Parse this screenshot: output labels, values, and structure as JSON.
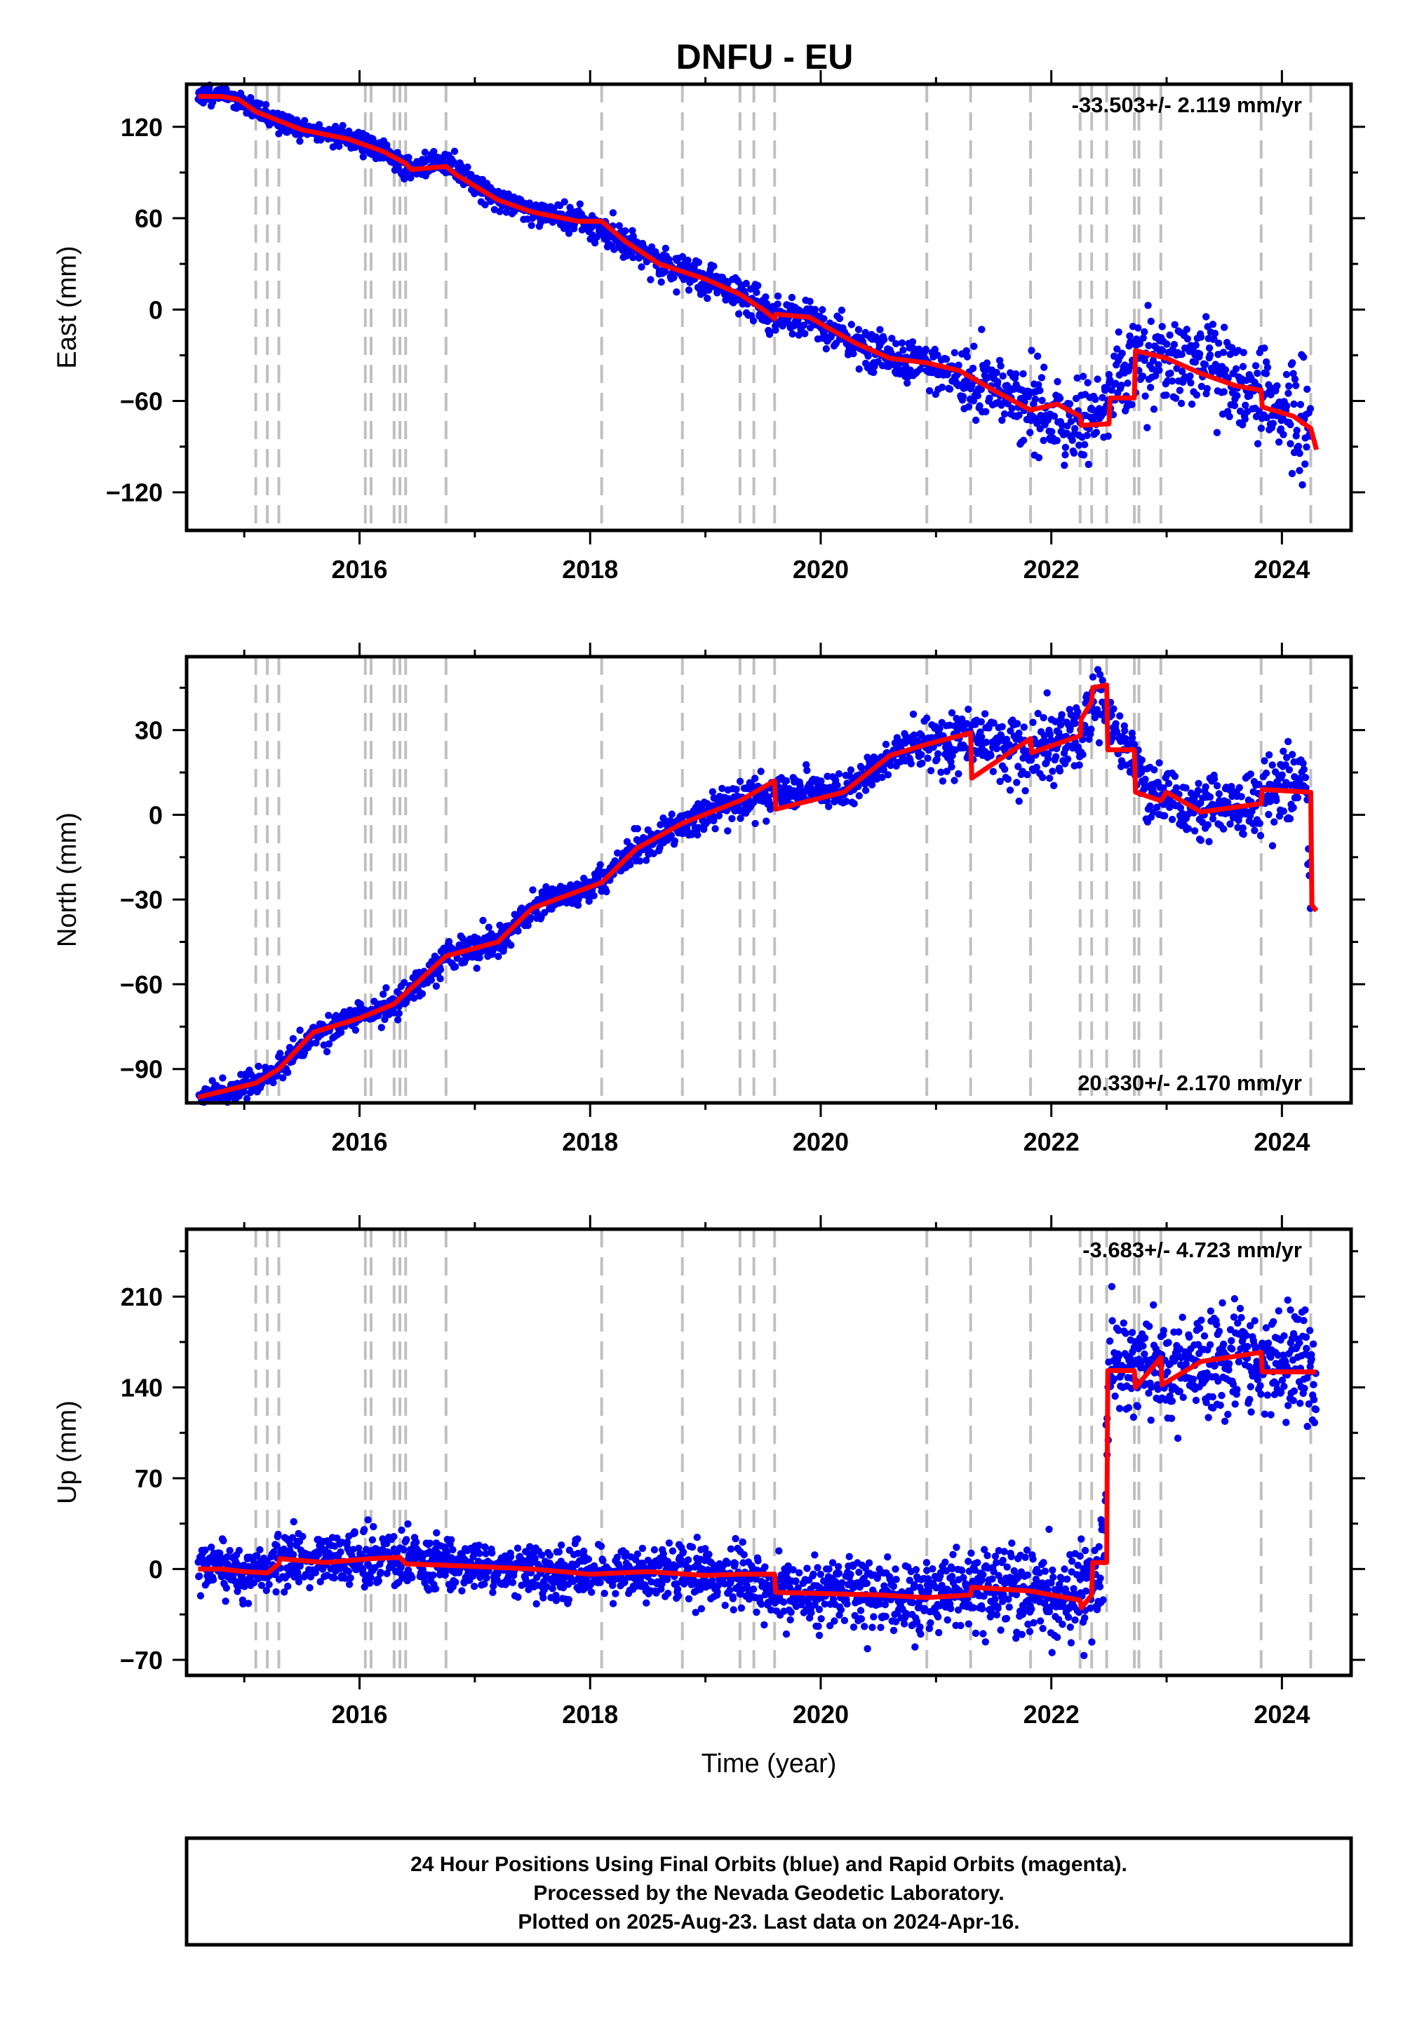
{
  "title": "DNFU - EU",
  "colors": {
    "points": "#0000ee",
    "model": "#ff0000",
    "events": "#c0c0c0",
    "frame": "#000000"
  },
  "footer": {
    "lines": [
      "24 Hour Positions Using Final Orbits (blue) and Rapid Orbits (magenta).",
      "Processed by the Nevada Geodetic Laboratory.",
      "Plotted on 2025-Aug-23. Last data on 2024-Apr-16."
    ]
  },
  "chart_data": [
    {
      "type": "scatter",
      "component": "east",
      "ylabel": "East (mm)",
      "xlabel": "",
      "rate_text": "-33.503+/- 2.119 mm/yr",
      "rate_position": "top-right",
      "xlim": [
        2014.5,
        2024.6
      ],
      "ylim": [
        -145,
        148
      ],
      "xticks": [
        2016,
        2018,
        2020,
        2022,
        2024
      ],
      "yticks": [
        120,
        60,
        0,
        -60,
        -120
      ],
      "ytick_labels": [
        "120",
        "60",
        "0",
        "−60",
        "−120"
      ],
      "event_lines": [
        2015.1,
        2015.2,
        2015.3,
        2016.05,
        2016.1,
        2016.3,
        2016.35,
        2016.4,
        2016.75,
        2018.1,
        2018.8,
        2019.3,
        2019.42,
        2019.6,
        2020.92,
        2021.3,
        2021.82,
        2022.25,
        2022.35,
        2022.48,
        2022.72,
        2022.76,
        2022.95,
        2023.82,
        2024.25
      ],
      "model": {
        "x": [
          2014.6,
          2014.8,
          2014.95,
          2015.1,
          2015.5,
          2015.9,
          2016.2,
          2016.4,
          2016.45,
          2016.75,
          2016.85,
          2017.2,
          2017.5,
          2017.9,
          2018.1,
          2018.3,
          2018.6,
          2018.8,
          2019.0,
          2019.3,
          2019.5,
          2019.6,
          2019.61,
          2019.9,
          2020.3,
          2020.6,
          2020.92,
          2021.2,
          2021.5,
          2021.82,
          2022.05,
          2022.25,
          2022.26,
          2022.5,
          2022.51,
          2022.72,
          2022.73,
          2023.0,
          2023.3,
          2023.6,
          2023.82,
          2023.83,
          2024.1,
          2024.25,
          2024.3
        ],
        "y": [
          140,
          140,
          138,
          130,
          118,
          112,
          104,
          96,
          92,
          94,
          88,
          72,
          64,
          58,
          58,
          45,
          30,
          25,
          20,
          10,
          0,
          -6,
          -3,
          -5,
          -22,
          -32,
          -35,
          -40,
          -53,
          -66,
          -62,
          -70,
          -76,
          -75,
          -58,
          -58,
          -27,
          -32,
          -42,
          -50,
          -53,
          -64,
          -70,
          -78,
          -92
        ]
      },
      "scatter": {
        "trend": [
          [
            2014.6,
            141
          ],
          [
            2014.85,
            142
          ],
          [
            2015.1,
            130
          ],
          [
            2015.5,
            118
          ],
          [
            2015.9,
            113
          ],
          [
            2016.2,
            104
          ],
          [
            2016.4,
            93
          ],
          [
            2016.75,
            96
          ],
          [
            2017.2,
            73
          ],
          [
            2017.5,
            65
          ],
          [
            2017.9,
            59
          ],
          [
            2018.3,
            45
          ],
          [
            2018.6,
            30
          ],
          [
            2019.0,
            20
          ],
          [
            2019.3,
            10
          ],
          [
            2019.6,
            -5
          ],
          [
            2019.9,
            -4
          ],
          [
            2020.3,
            -22
          ],
          [
            2020.9,
            -35
          ],
          [
            2021.5,
            -53
          ],
          [
            2021.82,
            -66
          ],
          [
            2022.25,
            -75
          ],
          [
            2022.5,
            -60
          ],
          [
            2022.73,
            -28
          ],
          [
            2023.0,
            -32
          ],
          [
            2023.6,
            -45
          ],
          [
            2023.82,
            -55
          ],
          [
            2024.25,
            -85
          ]
        ],
        "noise": [
          [
            2014.6,
            3
          ],
          [
            2016.5,
            4
          ],
          [
            2018.5,
            5
          ],
          [
            2021.0,
            7
          ],
          [
            2021.7,
            12
          ],
          [
            2022.6,
            15
          ],
          [
            2023.9,
            15
          ],
          [
            2024.25,
            22
          ]
        ],
        "count": 1800,
        "seed": 11
      }
    },
    {
      "type": "scatter",
      "component": "north",
      "ylabel": "North (mm)",
      "xlabel": "",
      "rate_text": "20.330+/- 2.170 mm/yr",
      "rate_position": "bottom-right",
      "xlim": [
        2014.5,
        2024.6
      ],
      "ylim": [
        -102,
        56
      ],
      "xticks": [
        2016,
        2018,
        2020,
        2022,
        2024
      ],
      "yticks": [
        30,
        0,
        -30,
        -60,
        -90
      ],
      "ytick_labels": [
        "30",
        "0",
        "−30",
        "−60",
        "−90"
      ],
      "event_lines": [
        2015.1,
        2015.2,
        2015.3,
        2016.05,
        2016.1,
        2016.3,
        2016.35,
        2016.4,
        2016.75,
        2018.1,
        2018.8,
        2019.3,
        2019.42,
        2019.6,
        2020.92,
        2021.3,
        2021.82,
        2022.25,
        2022.35,
        2022.48,
        2022.72,
        2022.76,
        2022.95,
        2023.82,
        2024.25
      ],
      "model": {
        "x": [
          2014.6,
          2015.1,
          2015.3,
          2015.6,
          2016.0,
          2016.3,
          2016.75,
          2017.2,
          2017.5,
          2018.1,
          2018.4,
          2018.8,
          2019.3,
          2019.6,
          2019.61,
          2020.2,
          2020.6,
          2020.92,
          2021.3,
          2021.31,
          2021.82,
          2021.83,
          2022.25,
          2022.26,
          2022.35,
          2022.36,
          2022.48,
          2022.49,
          2022.72,
          2022.73,
          2022.95,
          2023.0,
          2023.3,
          2023.82,
          2023.83,
          2024.25,
          2024.26,
          2024.3
        ],
        "y": [
          -100,
          -95,
          -90,
          -77,
          -72,
          -67,
          -50,
          -45,
          -33,
          -24,
          -12,
          -3,
          5,
          12,
          2,
          8,
          21,
          25,
          29,
          13,
          27,
          22,
          28,
          34,
          40,
          45,
          46,
          23,
          23,
          8,
          5,
          8,
          1,
          4,
          9,
          8,
          -32,
          -34
        ]
      },
      "scatter": {
        "trend": [
          [
            2014.6,
            -100
          ],
          [
            2015.1,
            -95
          ],
          [
            2015.3,
            -90
          ],
          [
            2015.6,
            -77
          ],
          [
            2016.0,
            -72
          ],
          [
            2016.3,
            -67
          ],
          [
            2016.75,
            -50
          ],
          [
            2017.2,
            -45
          ],
          [
            2017.5,
            -33
          ],
          [
            2018.1,
            -24
          ],
          [
            2018.4,
            -12
          ],
          [
            2018.8,
            -3
          ],
          [
            2019.3,
            5
          ],
          [
            2019.6,
            8
          ],
          [
            2020.2,
            8
          ],
          [
            2020.6,
            21
          ],
          [
            2020.92,
            25
          ],
          [
            2021.3,
            27
          ],
          [
            2021.82,
            23
          ],
          [
            2022.25,
            28
          ],
          [
            2022.4,
            44
          ],
          [
            2022.55,
            30
          ],
          [
            2022.72,
            20
          ],
          [
            2022.85,
            8
          ],
          [
            2023.3,
            1
          ],
          [
            2023.82,
            5
          ],
          [
            2024.2,
            12
          ],
          [
            2024.25,
            -32
          ]
        ],
        "noise": [
          [
            2014.6,
            2
          ],
          [
            2016.5,
            2.5
          ],
          [
            2018.5,
            3
          ],
          [
            2020.5,
            3
          ],
          [
            2021.4,
            6
          ],
          [
            2022.3,
            7
          ],
          [
            2023.0,
            5
          ],
          [
            2024.2,
            6
          ]
        ],
        "count": 1800,
        "seed": 23
      }
    },
    {
      "type": "scatter",
      "component": "up",
      "ylabel": "Up (mm)",
      "xlabel": "Time (year)",
      "rate_text": "-3.683+/- 4.723 mm/yr",
      "rate_position": "top-right",
      "xlim": [
        2014.5,
        2024.6
      ],
      "ylim": [
        -82,
        262
      ],
      "xticks": [
        2016,
        2018,
        2020,
        2022,
        2024
      ],
      "yticks": [
        210,
        140,
        70,
        0,
        -70
      ],
      "ytick_labels": [
        "210",
        "140",
        "70",
        "0",
        "−70"
      ],
      "event_lines": [
        2015.1,
        2015.2,
        2015.3,
        2016.05,
        2016.1,
        2016.3,
        2016.35,
        2016.4,
        2016.75,
        2018.1,
        2018.8,
        2019.3,
        2019.42,
        2019.6,
        2020.92,
        2021.3,
        2021.82,
        2022.25,
        2022.35,
        2022.48,
        2022.72,
        2022.76,
        2022.95,
        2023.82,
        2024.25
      ],
      "model": {
        "x": [
          2014.6,
          2014.8,
          2015.0,
          2015.2,
          2015.3,
          2015.31,
          2015.7,
          2016.1,
          2016.35,
          2016.4,
          2017.0,
          2017.5,
          2018.0,
          2018.5,
          2019.0,
          2019.3,
          2019.6,
          2019.61,
          2020.5,
          2020.92,
          2021.3,
          2021.31,
          2021.82,
          2022.25,
          2022.26,
          2022.35,
          2022.36,
          2022.48,
          2022.49,
          2022.72,
          2022.73,
          2022.95,
          2022.96,
          2023.3,
          2023.82,
          2023.83,
          2024.3
        ],
        "y": [
          0,
          0,
          -2,
          -3,
          4,
          8,
          5,
          8,
          9,
          4,
          2,
          0,
          -4,
          -2,
          -5,
          -4,
          -4,
          -18,
          -20,
          -22,
          -20,
          -14,
          -17,
          -24,
          -30,
          -20,
          5,
          5,
          153,
          153,
          140,
          163,
          142,
          160,
          167,
          152,
          152
        ]
      },
      "scatter": {
        "trend": [
          [
            2014.6,
            0
          ],
          [
            2015.2,
            -3
          ],
          [
            2015.3,
            6
          ],
          [
            2016.3,
            8
          ],
          [
            2017.0,
            2
          ],
          [
            2018.0,
            -4
          ],
          [
            2019.3,
            -4
          ],
          [
            2019.6,
            -18
          ],
          [
            2020.92,
            -22
          ],
          [
            2021.3,
            -14
          ],
          [
            2021.82,
            -17
          ],
          [
            2022.3,
            -20
          ],
          [
            2022.45,
            5
          ],
          [
            2022.5,
            150
          ],
          [
            2022.95,
            150
          ],
          [
            2023.5,
            160
          ],
          [
            2023.82,
            165
          ],
          [
            2024.3,
            152
          ]
        ],
        "noise": [
          [
            2014.6,
            10
          ],
          [
            2016.0,
            10
          ],
          [
            2019.0,
            10
          ],
          [
            2020.5,
            14
          ],
          [
            2021.5,
            17
          ],
          [
            2022.4,
            20
          ],
          [
            2022.6,
            20
          ],
          [
            2024.3,
            20
          ]
        ],
        "count": 2200,
        "seed": 37
      }
    }
  ]
}
